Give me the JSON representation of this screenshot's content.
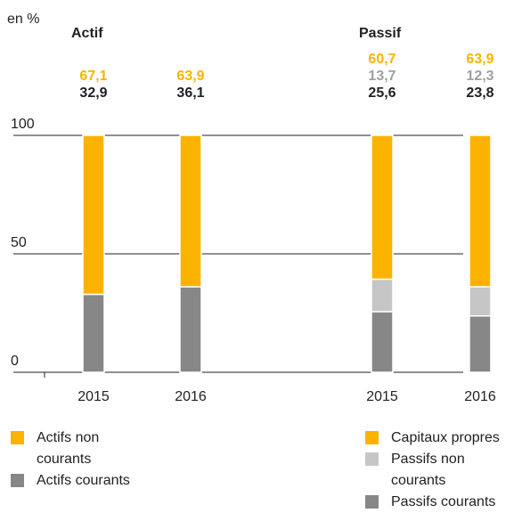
{
  "chart_data": {
    "type": "stacked_bar",
    "unit_label": "en %",
    "group_labels": [
      "Actif",
      "Passif"
    ],
    "categories": [
      "2015",
      "2016",
      "2015",
      "2016"
    ],
    "ylim": [
      0,
      100
    ],
    "yticks": [
      0,
      50,
      100
    ],
    "grid": true,
    "series": [
      {
        "name": "Actifs courants",
        "color": "#878787",
        "label_color": "#222222",
        "values": [
          32.9,
          36.1,
          null,
          null
        ],
        "value_labels": [
          "32,9",
          "36,1",
          null,
          null
        ]
      },
      {
        "name": "Actifs non courants",
        "color": "#fcb300",
        "label_color": "#fcb300",
        "values": [
          67.1,
          63.9,
          null,
          null
        ],
        "value_labels": [
          "67,1",
          "63,9",
          null,
          null
        ]
      },
      {
        "name": "Passifs courants",
        "color": "#878787",
        "label_color": "#222222",
        "values": [
          null,
          null,
          25.6,
          23.8
        ],
        "value_labels": [
          null,
          null,
          "25,6",
          "23,8"
        ]
      },
      {
        "name": "Passifs non courants",
        "color": "#c6c6c6",
        "label_color": "#a0a0a0",
        "values": [
          null,
          null,
          13.7,
          12.3
        ],
        "value_labels": [
          null,
          null,
          "13,7",
          "12,3"
        ]
      },
      {
        "name": "Capitaux propres",
        "color": "#fcb300",
        "label_color": "#fcb300",
        "values": [
          null,
          null,
          60.7,
          63.9
        ],
        "value_labels": [
          null,
          null,
          "60,7",
          "63,9"
        ]
      }
    ]
  }
}
